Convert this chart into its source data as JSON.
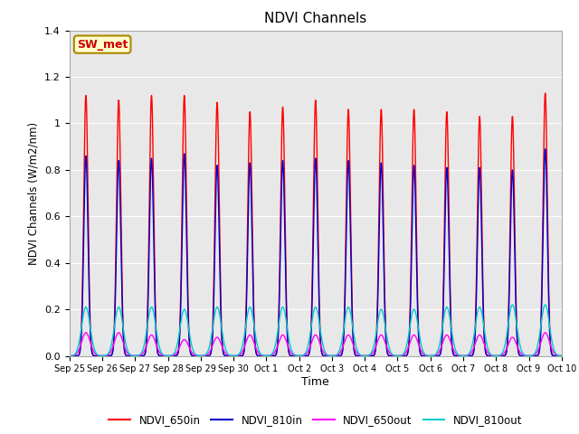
{
  "title": "NDVI Channels",
  "ylabel": "NDVI Channels (W/m2/nm)",
  "xlabel": "Time",
  "ylim": [
    0.0,
    1.4
  ],
  "yticks": [
    0.0,
    0.2,
    0.4,
    0.6,
    0.8,
    1.0,
    1.2,
    1.4
  ],
  "xtick_labels": [
    "Sep 25",
    "Sep 26",
    "Sep 27",
    "Sep 28",
    "Sep 29",
    "Sep 30",
    "Oct 1",
    "Oct 2",
    "Oct 3",
    "Oct 4",
    "Oct 5",
    "Oct 6",
    "Oct 7",
    "Oct 8",
    "Oct 9",
    "Oct 10"
  ],
  "annotation_text": "SW_met",
  "annotation_color": "#cc0000",
  "annotation_bg": "#ffffcc",
  "annotation_border": "#aa8800",
  "line_colors": {
    "NDVI_650in": "#ff0000",
    "NDVI_810in": "#0000cc",
    "NDVI_650out": "#ff00ff",
    "NDVI_810out": "#00cccc"
  },
  "bg_color": "#e8e8e8",
  "n_days": 15,
  "peak_650in": [
    1.12,
    1.1,
    1.12,
    1.12,
    1.09,
    1.05,
    1.07,
    1.1,
    1.06,
    1.06,
    1.06,
    1.05,
    1.03,
    1.03,
    1.13
  ],
  "peak_810in": [
    0.86,
    0.84,
    0.85,
    0.87,
    0.82,
    0.83,
    0.84,
    0.85,
    0.84,
    0.83,
    0.82,
    0.81,
    0.81,
    0.8,
    0.89
  ],
  "peak_650out": [
    0.1,
    0.1,
    0.09,
    0.07,
    0.08,
    0.09,
    0.09,
    0.09,
    0.09,
    0.09,
    0.09,
    0.09,
    0.09,
    0.08,
    0.1
  ],
  "peak_810out": [
    0.21,
    0.21,
    0.21,
    0.2,
    0.21,
    0.21,
    0.21,
    0.21,
    0.21,
    0.2,
    0.2,
    0.21,
    0.21,
    0.22,
    0.22
  ]
}
